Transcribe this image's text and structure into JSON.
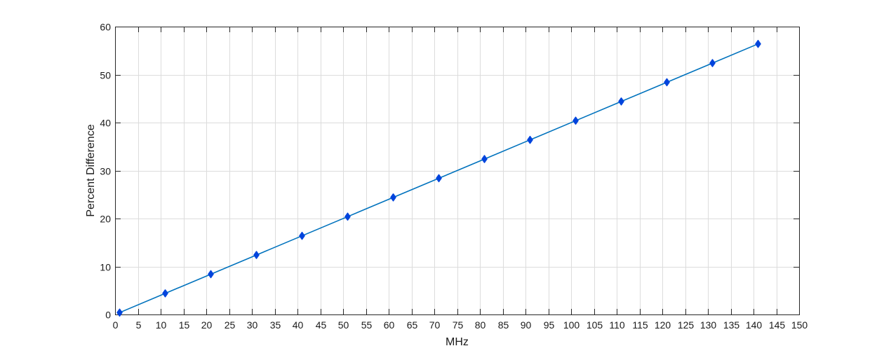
{
  "chart_data": {
    "type": "line",
    "title": "",
    "xlabel": "MHz",
    "ylabel": "Percent Difference",
    "xlim": [
      0,
      150
    ],
    "ylim": [
      0,
      60
    ],
    "xticks": [
      0,
      5,
      10,
      15,
      20,
      25,
      30,
      35,
      40,
      45,
      50,
      55,
      60,
      65,
      70,
      75,
      80,
      85,
      90,
      95,
      100,
      105,
      110,
      115,
      120,
      125,
      130,
      135,
      140,
      145,
      150
    ],
    "yticks": [
      0,
      10,
      20,
      30,
      40,
      50,
      60
    ],
    "grid": true,
    "legend": "none",
    "series": [
      {
        "x": [
          1,
          11,
          21,
          31,
          41,
          51,
          61,
          71,
          81,
          91,
          101,
          111,
          121,
          131,
          141
        ],
        "y": [
          0.4,
          4.4,
          8.4,
          12.4,
          16.4,
          20.4,
          24.4,
          28.4,
          32.4,
          36.4,
          40.4,
          44.4,
          48.4,
          52.4,
          56.4
        ],
        "line_color": "#0072BD",
        "marker": "diamond",
        "marker_color": "#0044dd"
      }
    ]
  }
}
